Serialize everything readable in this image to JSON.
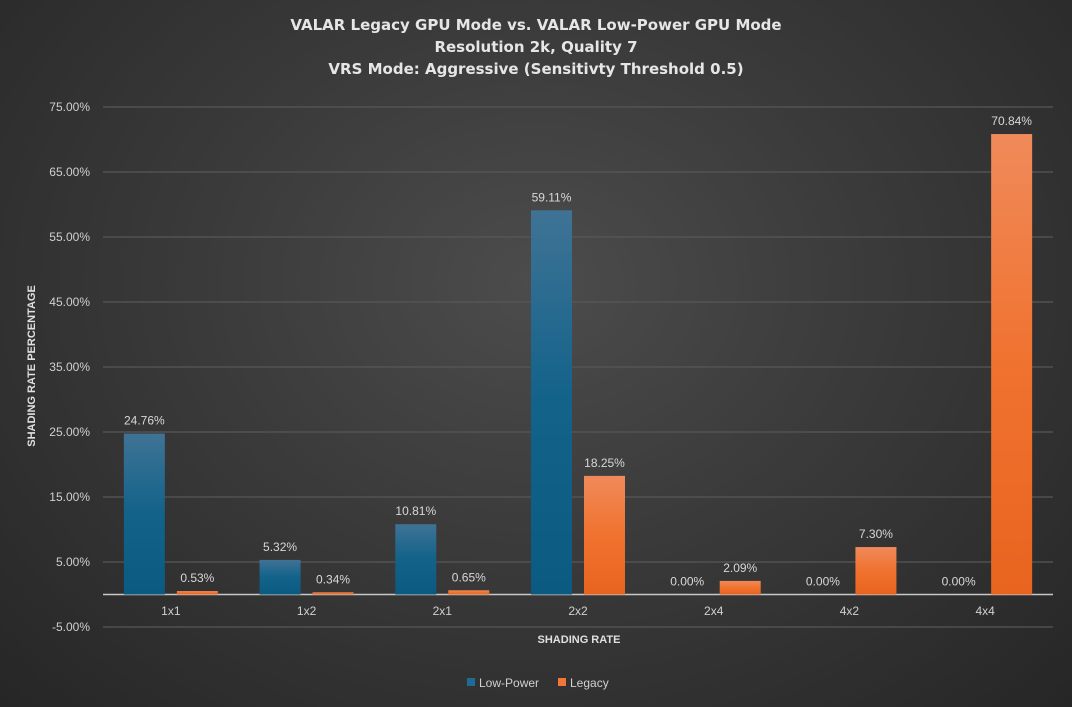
{
  "chart_data": {
    "type": "bar",
    "title_lines": [
      "VALAR Legacy GPU Mode vs. VALAR Low-Power GPU Mode",
      "Resolution 2k, Quality 7",
      "VRS Mode: Aggressive (Sensitivty Threshold 0.5)"
    ],
    "xlabel": "SHADING RATE",
    "ylabel": "SHADING RATE PERCENTAGE",
    "categories": [
      "1x1",
      "1x2",
      "2x1",
      "2x2",
      "2x4",
      "4x2",
      "4x4"
    ],
    "series": [
      {
        "name": "Low-Power",
        "color": "#1f6b94",
        "values": [
          24.76,
          5.32,
          10.81,
          59.11,
          0.0,
          0.0,
          0.0
        ],
        "labels": [
          "24.76%",
          "5.32%",
          "10.81%",
          "59.11%",
          "0.00%",
          "0.00%",
          "0.00%"
        ]
      },
      {
        "name": "Legacy",
        "color": "#f0763a",
        "values": [
          0.53,
          0.34,
          0.65,
          18.25,
          2.09,
          7.3,
          70.84
        ],
        "labels": [
          "0.53%",
          "0.34%",
          "0.65%",
          "18.25%",
          "2.09%",
          "7.30%",
          "70.84%"
        ]
      }
    ],
    "yticks": [
      -5,
      5,
      15,
      25,
      35,
      45,
      55,
      65,
      75
    ],
    "ytick_labels": [
      "-5.00%",
      "5.00%",
      "15.00%",
      "25.00%",
      "35.00%",
      "45.00%",
      "55.00%",
      "65.00%",
      "75.00%"
    ],
    "ylim": [
      -5,
      75
    ],
    "grid": true,
    "legend_position": "bottom"
  }
}
